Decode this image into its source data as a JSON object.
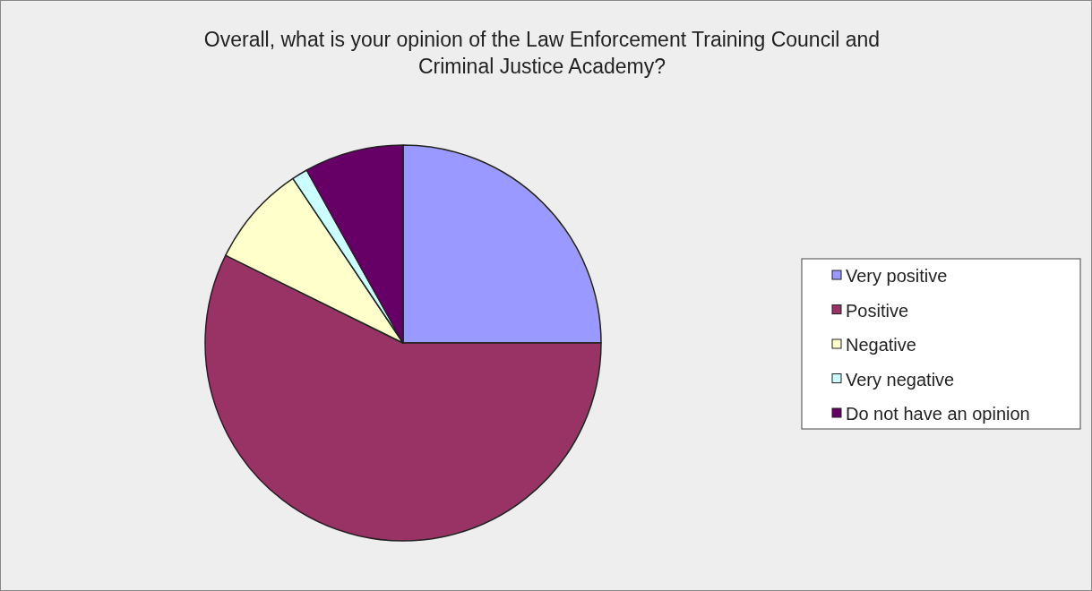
{
  "chart_data": {
    "type": "pie",
    "title": "Overall, what is your opinion of the Law Enforcement Training Council and Criminal Justice Academy?",
    "categories": [
      "Very positive",
      "Positive",
      "Negative",
      "Very negative",
      "Do not have an opinion"
    ],
    "values": [
      25,
      57.3,
      8.3,
      1.3,
      8.1
    ],
    "colors": [
      "#9999ff",
      "#993366",
      "#ffffcc",
      "#ccffff",
      "#660066"
    ],
    "legend": "right"
  }
}
